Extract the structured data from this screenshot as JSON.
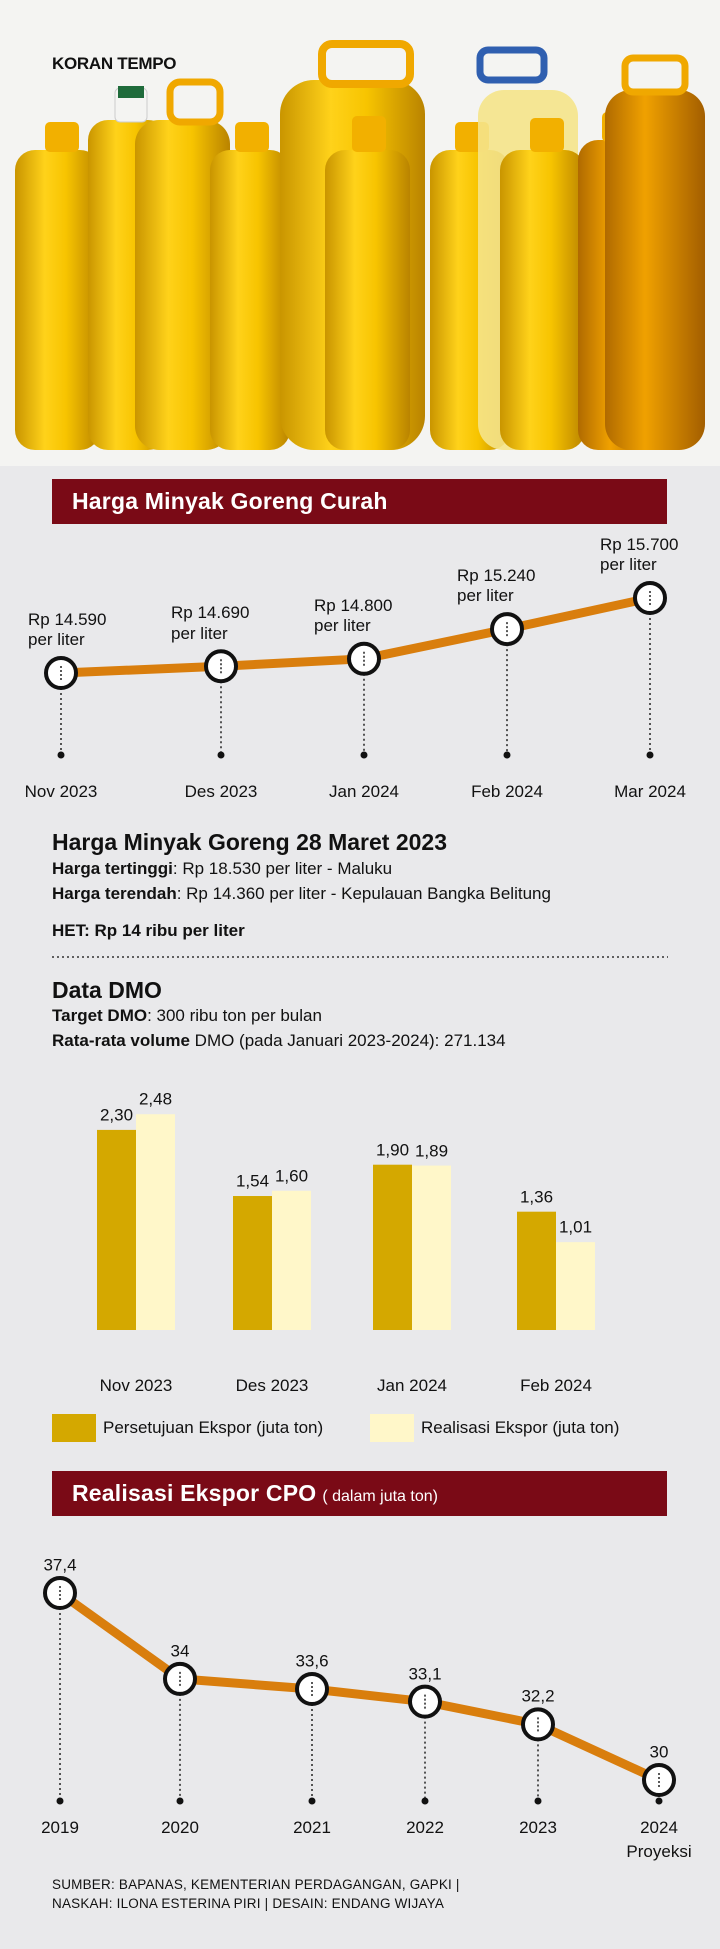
{
  "brand": "KORAN TEMPO",
  "info": {
    "title": "Harga Minyak Goreng 28 Maret 2023",
    "lines": [
      {
        "label": "Harga tertinggi",
        "text": ": Rp 18.530 per liter - Maluku"
      },
      {
        "label": "Harga terendah",
        "text": ": Rp 14.360 per liter - Kepulauan Bangka Belitung"
      }
    ],
    "het": "HET: Rp 14 ribu per liter"
  },
  "dmo": {
    "title": "Data DMO",
    "lines": [
      {
        "label": "Target DMO",
        "text": ": 300 ribu ton per bulan"
      },
      {
        "label": "Rata-rata volume",
        "text": " DMO (pada Januari 2023-2024): 271.134"
      }
    ]
  },
  "chart_data": [
    {
      "type": "line",
      "title": "Harga Minyak Goreng Curah",
      "categories": [
        "Nov 2023",
        "Des 2023",
        "Jan 2024",
        "Feb 2024",
        "Mar 2024"
      ],
      "values": [
        14590,
        14690,
        14800,
        15240,
        15700
      ],
      "value_labels": [
        "Rp 14.590 per liter",
        "Rp 14.690 per liter",
        "Rp 14.800 per liter",
        "Rp 15.240 per liter",
        "Rp 15.700 per liter"
      ],
      "color": "#d97e0d"
    },
    {
      "type": "bar",
      "categories": [
        "Nov 2023",
        "Des 2023",
        "Jan 2024",
        "Feb 2024"
      ],
      "series": [
        {
          "name": "Persetujuan Ekspor (juta ton)",
          "color": "#d4a800",
          "values": [
            2.3,
            1.54,
            1.9,
            1.36
          ],
          "value_labels": [
            "2,30",
            "1,54",
            "1,90",
            "1,36"
          ]
        },
        {
          "name": "Realisasi Ekspor (juta ton)",
          "color": "#fff7c9",
          "values": [
            2.48,
            1.6,
            1.89,
            1.01
          ],
          "value_labels": [
            "2,48",
            "1,60",
            "1,89",
            "1,01"
          ]
        }
      ]
    },
    {
      "type": "line",
      "title": "Realisasi Ekspor CPO",
      "subtitle": "( dalam juta ton)",
      "categories": [
        "2019",
        "2020",
        "2021",
        "2022",
        "2023",
        "2024"
      ],
      "values": [
        37.4,
        34,
        33.6,
        33.1,
        32.2,
        30
      ],
      "value_labels": [
        "37,4",
        "34",
        "33,6",
        "33,1",
        "32,2",
        "30"
      ],
      "annotation": "Proyeksi",
      "color": "#d97e0d"
    }
  ],
  "footer": [
    "SUMBER: BAPANAS, KEMENTERIAN PERDAGANGAN, GAPKI |",
    "NASKAH: ILONA ESTERINA PIRI | DESAIN: ENDANG WIJAYA"
  ]
}
